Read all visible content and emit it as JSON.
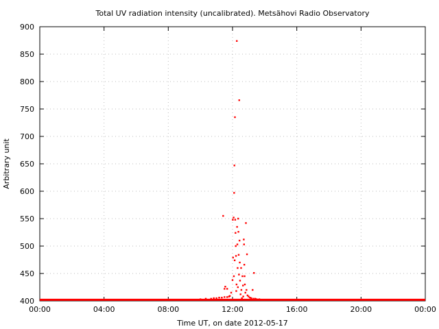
{
  "chart_data": {
    "type": "scatter",
    "title": "Total UV radiation intensity (uncalibrated). Metsähovi Radio Observatory",
    "xlabel": "Time UT, on date 2012-05-17",
    "ylabel": "Arbitrary unit",
    "xlim": [
      "00:00",
      "24:00"
    ],
    "ylim": [
      400,
      900
    ],
    "x_ticks": [
      "00:00",
      "04:00",
      "08:00",
      "12:00",
      "16:00",
      "20:00",
      "00:00"
    ],
    "y_ticks": [
      "400",
      "450",
      "500",
      "550",
      "600",
      "650",
      "700",
      "750",
      "800",
      "850",
      "900"
    ],
    "grid": true,
    "point_color": "#ff0000",
    "baseline": {
      "value": 402,
      "x_start": "00:00",
      "x_end": "24:00"
    },
    "points": [
      {
        "x": "10:00",
        "y": 403
      },
      {
        "x": "10:20",
        "y": 404
      },
      {
        "x": "10:40",
        "y": 404
      },
      {
        "x": "10:50",
        "y": 405
      },
      {
        "x": "11:00",
        "y": 405
      },
      {
        "x": "11:10",
        "y": 406
      },
      {
        "x": "11:20",
        "y": 406
      },
      {
        "x": "11:30",
        "y": 407
      },
      {
        "x": "11:40",
        "y": 407
      },
      {
        "x": "11:47",
        "y": 408
      },
      {
        "x": "11:25",
        "y": 555
      },
      {
        "x": "11:30",
        "y": 422
      },
      {
        "x": "11:33",
        "y": 426
      },
      {
        "x": "11:40",
        "y": 422
      },
      {
        "x": "11:50",
        "y": 409
      },
      {
        "x": "11:55",
        "y": 415
      },
      {
        "x": "12:00",
        "y": 438
      },
      {
        "x": "12:01",
        "y": 548
      },
      {
        "x": "12:02",
        "y": 479
      },
      {
        "x": "12:04",
        "y": 552
      },
      {
        "x": "12:05",
        "y": 445
      },
      {
        "x": "12:06",
        "y": 597
      },
      {
        "x": "12:07",
        "y": 647
      },
      {
        "x": "12:08",
        "y": 474
      },
      {
        "x": "12:09",
        "y": 735
      },
      {
        "x": "12:10",
        "y": 548
      },
      {
        "x": "12:11",
        "y": 524
      },
      {
        "x": "12:12",
        "y": 500
      },
      {
        "x": "12:13",
        "y": 482
      },
      {
        "x": "12:14",
        "y": 418
      },
      {
        "x": "12:15",
        "y": 430
      },
      {
        "x": "12:16",
        "y": 874
      },
      {
        "x": "12:17",
        "y": 535
      },
      {
        "x": "12:18",
        "y": 503
      },
      {
        "x": "12:19",
        "y": 460
      },
      {
        "x": "12:20",
        "y": 425
      },
      {
        "x": "12:21",
        "y": 550
      },
      {
        "x": "12:22",
        "y": 526
      },
      {
        "x": "12:23",
        "y": 484
      },
      {
        "x": "12:24",
        "y": 448
      },
      {
        "x": "12:25",
        "y": 766
      },
      {
        "x": "12:26",
        "y": 510
      },
      {
        "x": "12:27",
        "y": 470
      },
      {
        "x": "12:28",
        "y": 437
      },
      {
        "x": "12:30",
        "y": 412
      },
      {
        "x": "12:32",
        "y": 460
      },
      {
        "x": "12:33",
        "y": 420
      },
      {
        "x": "12:35",
        "y": 405
      },
      {
        "x": "12:37",
        "y": 445
      },
      {
        "x": "12:39",
        "y": 428
      },
      {
        "x": "12:40",
        "y": 408
      },
      {
        "x": "12:42",
        "y": 512
      },
      {
        "x": "12:43",
        "y": 503
      },
      {
        "x": "12:44",
        "y": 466
      },
      {
        "x": "12:45",
        "y": 445
      },
      {
        "x": "12:46",
        "y": 430
      },
      {
        "x": "12:48",
        "y": 415
      },
      {
        "x": "12:50",
        "y": 542
      },
      {
        "x": "12:52",
        "y": 420
      },
      {
        "x": "12:54",
        "y": 485
      },
      {
        "x": "12:56",
        "y": 410
      },
      {
        "x": "13:00",
        "y": 408
      },
      {
        "x": "13:05",
        "y": 406
      },
      {
        "x": "13:10",
        "y": 405
      },
      {
        "x": "13:15",
        "y": 420
      },
      {
        "x": "13:18",
        "y": 404
      },
      {
        "x": "13:20",
        "y": 451
      },
      {
        "x": "13:25",
        "y": 404
      },
      {
        "x": "13:30",
        "y": 403
      },
      {
        "x": "13:40",
        "y": 403
      },
      {
        "x": "13:50",
        "y": 402
      },
      {
        "x": "14:00",
        "y": 402
      }
    ]
  }
}
